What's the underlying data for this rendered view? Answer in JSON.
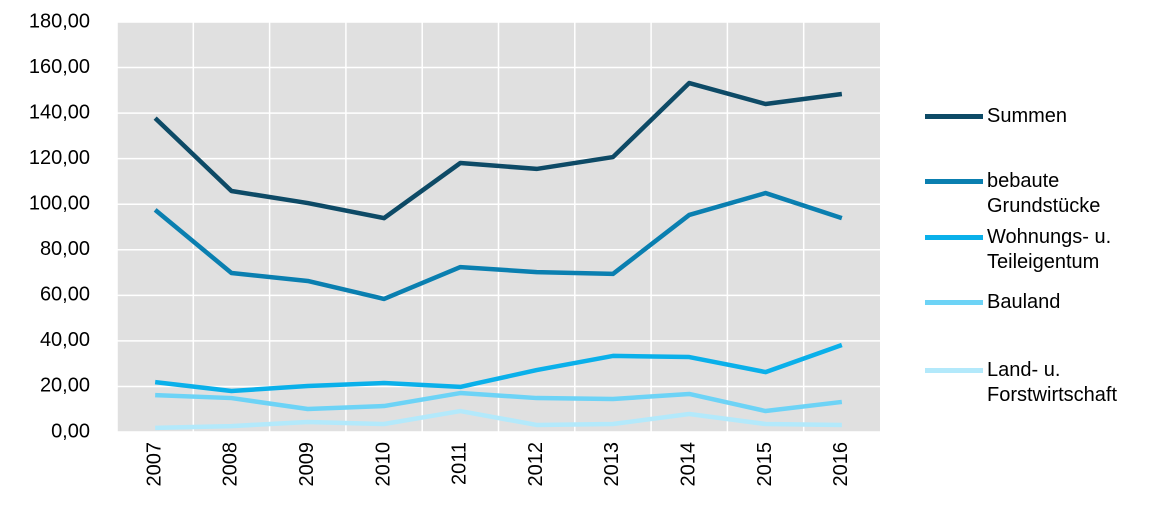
{
  "chart_data": {
    "type": "line",
    "categories": [
      "2007",
      "2008",
      "2009",
      "2010",
      "2011",
      "2012",
      "2013",
      "2014",
      "2015",
      "2016"
    ],
    "series": [
      {
        "name": "Summen",
        "color": "#0d4a66",
        "values": [
          137.8,
          105.8,
          100.5,
          93.9,
          118.1,
          115.5,
          120.7,
          153.2,
          144.0,
          148.4
        ]
      },
      {
        "name": "bebaute Grundstücke",
        "color": "#0a7fb0",
        "values": [
          97.5,
          69.8,
          66.3,
          58.4,
          72.4,
          70.2,
          69.4,
          95.3,
          104.9,
          93.9
        ]
      },
      {
        "name": "Wohnungs- u. Teileigentum",
        "color": "#0ab0ea",
        "values": [
          21.9,
          18.0,
          20.2,
          21.5,
          19.8,
          27.2,
          33.4,
          32.9,
          26.3,
          38.2
        ]
      },
      {
        "name": "Bauland",
        "color": "#6dd3f6",
        "values": [
          16.2,
          14.9,
          10.1,
          11.4,
          17.1,
          14.9,
          14.5,
          16.7,
          9.2,
          13.2
        ]
      },
      {
        "name": "Land- u. Forstwirtschaft",
        "color": "#b3e9fb",
        "values": [
          1.8,
          2.6,
          4.4,
          3.5,
          9.2,
          3.1,
          3.5,
          7.9,
          3.5,
          3.1
        ]
      }
    ],
    "ylim": [
      0,
      180
    ],
    "yticks": [
      {
        "value": 0,
        "label": "0,00"
      },
      {
        "value": 20,
        "label": "20,00"
      },
      {
        "value": 40,
        "label": "40,00"
      },
      {
        "value": 60,
        "label": "60,00"
      },
      {
        "value": 80,
        "label": "80,00"
      },
      {
        "value": 100,
        "label": "100,00"
      },
      {
        "value": 120,
        "label": "120,00"
      },
      {
        "value": 140,
        "label": "140,00"
      },
      {
        "value": 160,
        "label": "160,00"
      },
      {
        "value": 180,
        "label": "180,00"
      }
    ],
    "grid": true,
    "background": "#e0e0e0",
    "legend": "right"
  }
}
